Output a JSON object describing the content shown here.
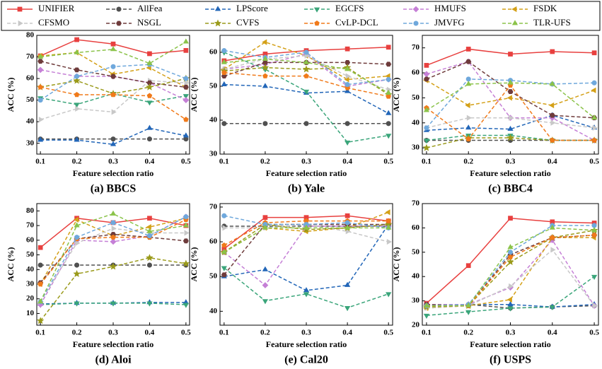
{
  "legend": [
    {
      "name": "UNIFIER",
      "color": "#e8403f",
      "marker": "square",
      "dash": false
    },
    {
      "name": "AllFea",
      "color": "#505050",
      "marker": "circle",
      "dash": true
    },
    {
      "name": "LPScore",
      "color": "#2266b8",
      "marker": "triangle-up",
      "dash": true
    },
    {
      "name": "EGCFS",
      "color": "#3aa57a",
      "marker": "triangle-down",
      "dash": true
    },
    {
      "name": "HMUFS",
      "color": "#c57fd6",
      "marker": "diamond",
      "dash": true
    },
    {
      "name": "FSDK",
      "color": "#d4a017",
      "marker": "triangle-left",
      "dash": true
    },
    {
      "name": "CFSMO",
      "color": "#c8c8c8",
      "marker": "triangle-right",
      "dash": true
    },
    {
      "name": "NSGL",
      "color": "#6e3b3b",
      "marker": "hexagon",
      "dash": true
    },
    {
      "name": "CVFS",
      "color": "#9a9a1a",
      "marker": "star",
      "dash": true
    },
    {
      "name": "CvLP-DCL",
      "color": "#f07a1a",
      "marker": "pentagon",
      "dash": true
    },
    {
      "name": "JMVFG",
      "color": "#6fa8dc",
      "marker": "circle",
      "dash": true
    },
    {
      "name": "TLR-UFS",
      "color": "#8bc34a",
      "marker": "triangle-up",
      "dash": true
    }
  ],
  "chart_data": [
    {
      "type": "line",
      "title": "(a) BBCS",
      "xlabel": "Feature selection ratio",
      "ylabel": "ACC (%)",
      "x": [
        0.1,
        0.2,
        0.3,
        0.4,
        0.5
      ],
      "xlim": [
        0.09,
        0.51
      ],
      "xticks": [
        0.1,
        0.2,
        0.3,
        0.4,
        0.5
      ],
      "ylim": [
        25,
        80
      ],
      "yticks": [
        30,
        40,
        50,
        60,
        70,
        80
      ],
      "series": [
        {
          "values": [
            70.5,
            78,
            76,
            71.5,
            73
          ]
        },
        {
          "values": [
            32,
            32,
            32,
            32,
            32
          ]
        },
        {
          "values": [
            31.5,
            31.5,
            29.5,
            37,
            33.5
          ]
        },
        {
          "values": [
            51,
            48,
            53,
            49,
            52
          ]
        },
        {
          "values": [
            64,
            61,
            61,
            58,
            50
          ]
        },
        {
          "values": [
            70.5,
            72,
            62,
            65,
            56
          ]
        },
        {
          "values": [
            41,
            46,
            44.5,
            59,
            58
          ]
        },
        {
          "values": [
            68,
            64,
            61,
            58,
            56
          ]
        },
        {
          "values": [
            56,
            59,
            53,
            56,
            60
          ]
        },
        {
          "values": [
            56,
            52.5,
            52.5,
            52,
            41
          ]
        },
        {
          "values": [
            50,
            61,
            65.5,
            66.5,
            60
          ]
        },
        {
          "values": [
            70,
            72,
            73.5,
            67,
            77
          ]
        }
      ]
    },
    {
      "type": "line",
      "title": "(b) Yale",
      "xlabel": "Feature selection ratio",
      "ylabel": "ACC (%)",
      "x": [
        0.1,
        0.2,
        0.3,
        0.4,
        0.5
      ],
      "xlim": [
        0.09,
        0.51
      ],
      "xticks": [
        0.1,
        0.2,
        0.3,
        0.4,
        0.5
      ],
      "ylim": [
        30,
        65
      ],
      "yticks": [
        30,
        40,
        50,
        60
      ],
      "series": [
        {
          "values": [
            57.5,
            59.5,
            60.5,
            61,
            61.5
          ]
        },
        {
          "values": [
            39,
            39,
            39,
            39,
            39
          ]
        },
        {
          "values": [
            50.5,
            50,
            48,
            48.5,
            42
          ]
        },
        {
          "values": [
            60,
            55,
            48.5,
            33.5,
            35.5
          ]
        },
        {
          "values": [
            55,
            56.5,
            59.5,
            50,
            52
          ]
        },
        {
          "values": [
            55,
            63,
            59,
            52,
            53
          ]
        },
        {
          "values": [
            55,
            58,
            59,
            53,
            49
          ]
        },
        {
          "values": [
            53,
            57,
            57,
            57,
            56.5
          ]
        },
        {
          "values": [
            54.5,
            55.5,
            55,
            55.5,
            47.5
          ]
        },
        {
          "values": [
            54,
            53,
            53,
            49.5,
            47
          ]
        },
        {
          "values": [
            60.5,
            58.5,
            60,
            50.5,
            52
          ]
        },
        {
          "values": [
            57,
            58,
            57,
            55,
            48
          ]
        }
      ]
    },
    {
      "type": "line",
      "title": "(c) BBC4",
      "xlabel": "Feature selection ratio",
      "ylabel": "ACC (%)",
      "x": [
        0.1,
        0.2,
        0.3,
        0.4,
        0.5
      ],
      "xlim": [
        0.09,
        0.51
      ],
      "xticks": [
        0.1,
        0.2,
        0.3,
        0.4,
        0.5
      ],
      "ylim": [
        27.5,
        75
      ],
      "yticks": [
        30,
        40,
        50,
        60,
        70
      ],
      "series": [
        {
          "values": [
            63,
            69.5,
            67.5,
            68.5,
            68
          ]
        },
        {
          "values": [
            33,
            33,
            33,
            33,
            33
          ]
        },
        {
          "values": [
            37,
            38,
            37.5,
            43,
            38
          ]
        },
        {
          "values": [
            33,
            35,
            35,
            33,
            33
          ]
        },
        {
          "values": [
            59.5,
            64.5,
            42,
            42,
            33
          ]
        },
        {
          "values": [
            57,
            47,
            50,
            47,
            53
          ]
        },
        {
          "values": [
            38,
            42,
            42,
            40,
            38
          ]
        },
        {
          "values": [
            57.5,
            64.5,
            52.5,
            43,
            42
          ]
        },
        {
          "values": [
            30,
            34,
            34,
            33,
            33
          ]
        },
        {
          "values": [
            46,
            33.5,
            55,
            33,
            33
          ]
        },
        {
          "values": [
            38,
            57.5,
            57,
            55.5,
            56
          ]
        },
        {
          "values": [
            45,
            55.5,
            56,
            55.5,
            42
          ]
        }
      ]
    },
    {
      "type": "line",
      "title": "(d) Aloi",
      "xlabel": "Feature selection ratio",
      "ylabel": "ACC (%)",
      "x": [
        0.1,
        0.2,
        0.3,
        0.4,
        0.5
      ],
      "xlim": [
        0.09,
        0.51
      ],
      "xticks": [
        0.1,
        0.2,
        0.3,
        0.4,
        0.5
      ],
      "ylim": [
        2,
        85
      ],
      "yticks": [
        10,
        20,
        30,
        40,
        50,
        60,
        70,
        80
      ],
      "series": [
        {
          "values": [
            55,
            75,
            72,
            75,
            70
          ]
        },
        {
          "values": [
            43,
            43,
            43,
            43,
            43
          ]
        },
        {
          "values": [
            16.5,
            17,
            17,
            17.5,
            17.5
          ]
        },
        {
          "values": [
            16,
            17,
            17,
            17,
            16
          ]
        },
        {
          "values": [
            16,
            60,
            59,
            63,
            76
          ]
        },
        {
          "values": [
            30,
            74,
            63,
            69,
            75
          ]
        },
        {
          "values": [
            18,
            58,
            68,
            65,
            65
          ]
        },
        {
          "values": [
            31,
            61,
            64,
            62,
            59.5
          ]
        },
        {
          "values": [
            5,
            37,
            42,
            48,
            44
          ]
        },
        {
          "values": [
            30,
            61,
            62,
            62,
            74
          ]
        },
        {
          "values": [
            18,
            62,
            72,
            63,
            76
          ]
        },
        {
          "values": [
            18,
            70,
            78,
            66,
            70
          ]
        }
      ]
    },
    {
      "type": "line",
      "title": "(e) Cal20",
      "xlabel": "Feature selection ratio",
      "ylabel": "ACC (%)",
      "x": [
        0.1,
        0.2,
        0.3,
        0.4,
        0.5
      ],
      "xlim": [
        0.09,
        0.51
      ],
      "xticks": [
        0.1,
        0.2,
        0.3,
        0.4,
        0.5
      ],
      "ylim": [
        36,
        71
      ],
      "yticks": [
        40,
        50,
        60,
        70
      ],
      "series": [
        {
          "values": [
            58,
            67,
            67,
            67.5,
            66
          ]
        },
        {
          "values": [
            64.5,
            64.5,
            64.5,
            64.5,
            64.5
          ]
        },
        {
          "values": [
            50,
            52,
            46,
            47.5,
            65
          ]
        },
        {
          "values": [
            52.5,
            43,
            45,
            41,
            45
          ]
        },
        {
          "values": [
            57,
            47.5,
            64.5,
            64.5,
            64.5
          ]
        },
        {
          "values": [
            57,
            64,
            63,
            64,
            68.5
          ]
        },
        {
          "values": [
            64,
            64,
            65,
            63,
            60
          ]
        },
        {
          "values": [
            50.5,
            65,
            65,
            65,
            65
          ]
        },
        {
          "values": [
            57,
            65,
            63.5,
            64,
            65
          ]
        },
        {
          "values": [
            59,
            65.5,
            66,
            66,
            66
          ]
        },
        {
          "values": [
            67.5,
            65,
            65,
            65.5,
            64
          ]
        },
        {
          "values": [
            57,
            64,
            64,
            64,
            64
          ]
        }
      ]
    },
    {
      "type": "line",
      "title": "(f) USPS",
      "xlabel": "Feature selection ratio",
      "ylabel": "ACC (%)",
      "x": [
        0.1,
        0.2,
        0.3,
        0.4,
        0.5
      ],
      "xlim": [
        0.09,
        0.51
      ],
      "xticks": [
        0.1,
        0.2,
        0.3,
        0.4,
        0.5
      ],
      "ylim": [
        20,
        70
      ],
      "yticks": [
        20,
        30,
        40,
        50,
        60,
        70
      ],
      "series": [
        {
          "values": [
            29,
            44.5,
            64,
            62.5,
            62
          ]
        },
        {
          "values": [
            28.5,
            28.5,
            27,
            27.5,
            28
          ]
        },
        {
          "values": [
            28,
            28.5,
            28.5,
            27.5,
            28.5
          ]
        },
        {
          "values": [
            24,
            25.5,
            27,
            27.5,
            40
          ]
        },
        {
          "values": [
            28.5,
            28.5,
            35.5,
            55,
            28
          ]
        },
        {
          "values": [
            27,
            28,
            30.5,
            56,
            56
          ]
        },
        {
          "values": [
            27,
            28,
            36,
            51,
            28
          ]
        },
        {
          "values": [
            28.5,
            28,
            49,
            56,
            57
          ]
        },
        {
          "values": [
            27.5,
            28,
            46,
            56,
            59
          ]
        },
        {
          "values": [
            28,
            28,
            48,
            56,
            57
          ]
        },
        {
          "values": [
            28,
            28.5,
            50,
            61,
            61
          ]
        },
        {
          "values": [
            28,
            28,
            52,
            60,
            59
          ]
        }
      ]
    }
  ]
}
